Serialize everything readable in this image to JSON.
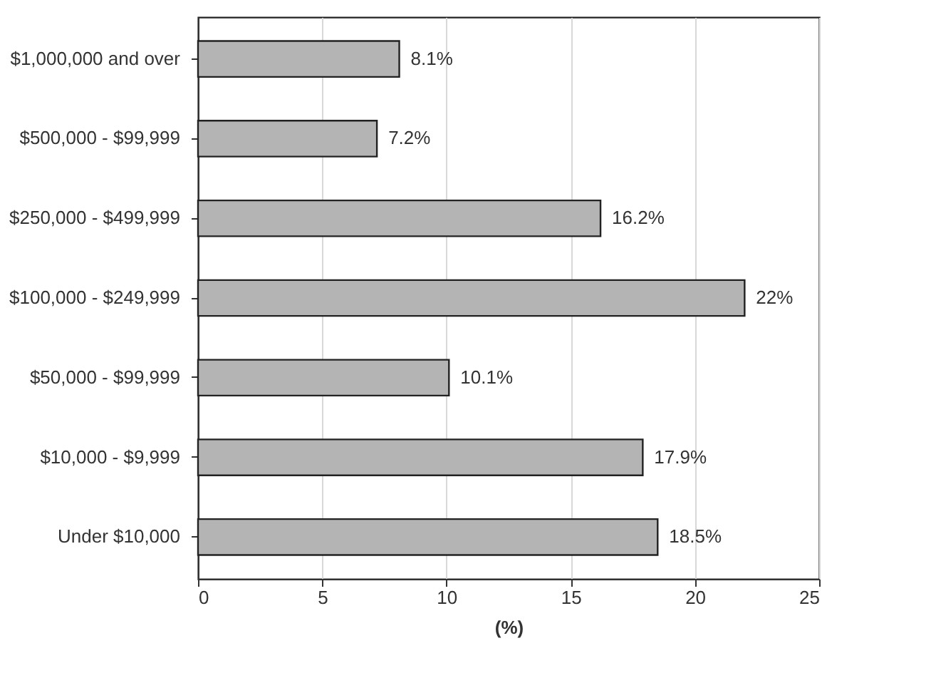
{
  "chart_data": {
    "type": "bar",
    "orientation": "horizontal",
    "xlabel": "(%)",
    "categories": [
      "$1,000,000 and over",
      "$500,000 - $99,999",
      "$250,000 - $499,999",
      "$100,000 - $249,999",
      "$50,000 - $99,999",
      "$10,000 - $9,999",
      "Under $10,000"
    ],
    "values": [
      8.1,
      7.2,
      16.2,
      22,
      10.1,
      17.9,
      18.5
    ],
    "value_labels": [
      "8.1%",
      "7.2%",
      "16.2%",
      "22%",
      "10.1%",
      "17.9%",
      "18.5%"
    ],
    "color": "#b4b4b4",
    "xlim": [
      0,
      25
    ],
    "xticks": [
      0,
      5,
      10,
      15,
      20,
      25
    ],
    "grid": "x"
  }
}
